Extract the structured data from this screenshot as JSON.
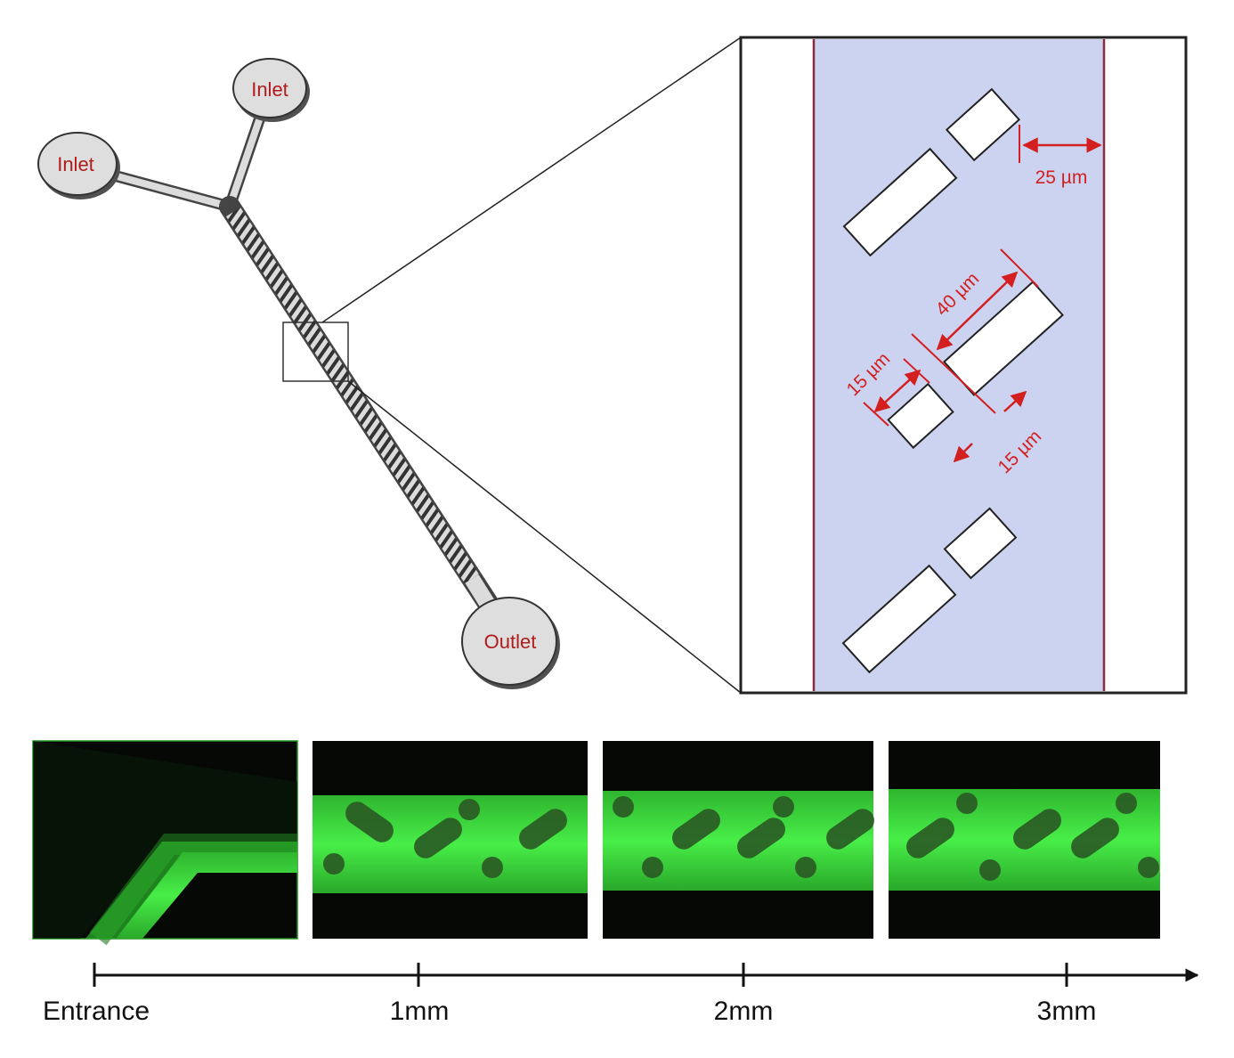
{
  "device": {
    "inlet_1_label": "Inlet",
    "inlet_2_label": "Inlet",
    "outlet_label": "Outlet"
  },
  "zoom": {
    "dim_gap_wall": "25 µm",
    "dim_long_baffle": "40 µm",
    "dim_short_baffle": "15 µm",
    "dim_baffle_gap": "15 µm"
  },
  "axis": {
    "entrance": "Entrance",
    "mark_1": "1mm",
    "mark_2": "2mm",
    "mark_3": "3mm"
  },
  "colors": {
    "channel_fill": "#ccd3f1",
    "wall": "#8a2a3a",
    "dimension": "#d31f1f",
    "fluorescence": "#3be03b"
  }
}
